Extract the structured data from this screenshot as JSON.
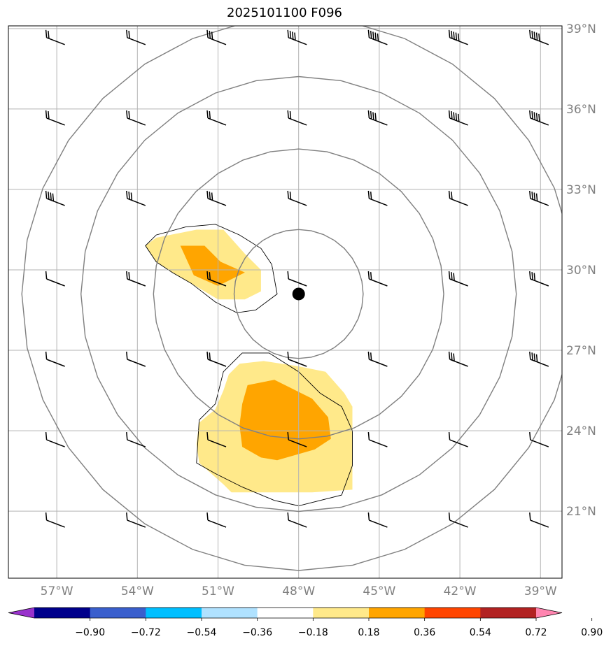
{
  "title": "2025101100 F096",
  "map": {
    "lon_range": [
      -58.8,
      -38.2
    ],
    "lat_range": [
      18.5,
      39.1
    ],
    "lon_ticks": [
      {
        "value": -57,
        "label": "57°W"
      },
      {
        "value": -54,
        "label": "54°W"
      },
      {
        "value": -51,
        "label": "51°W"
      },
      {
        "value": -48,
        "label": "48°W"
      },
      {
        "value": -45,
        "label": "45°W"
      },
      {
        "value": -42,
        "label": "42°W"
      },
      {
        "value": -39,
        "label": "39°W"
      }
    ],
    "lat_ticks": [
      {
        "value": 39,
        "label": "39°N"
      },
      {
        "value": 36,
        "label": "36°N"
      },
      {
        "value": 33,
        "label": "33°N"
      },
      {
        "value": 30,
        "label": "30°N"
      },
      {
        "value": 27,
        "label": "27°N"
      },
      {
        "value": 24,
        "label": "24°N"
      },
      {
        "value": 21,
        "label": "21°N"
      }
    ],
    "center": {
      "lon": -48.0,
      "lat": 29.1
    },
    "range_ring_radii_deg": [
      2.4,
      5.4,
      8.1,
      10.3
    ],
    "shading": {
      "levels": [
        "0.18-0.36",
        "0.36-0.54"
      ],
      "colors": [
        "#ffe98a",
        "#ffa500"
      ],
      "regions": [
        {
          "level": 0,
          "points": [
            [
              -53.7,
              30.9
            ],
            [
              -53.3,
              31.2
            ],
            [
              -51.8,
              31.5
            ],
            [
              -50.8,
              31.5
            ],
            [
              -50.0,
              30.6
            ],
            [
              -49.4,
              30.0
            ],
            [
              -49.4,
              29.2
            ],
            [
              -50.0,
              28.9
            ],
            [
              -51.0,
              28.9
            ],
            [
              -52.0,
              29.5
            ],
            [
              -52.7,
              29.9
            ],
            [
              -53.3,
              30.3
            ]
          ]
        },
        {
          "level": 0,
          "points": [
            [
              -50.2,
              26.5
            ],
            [
              -49.3,
              26.6
            ],
            [
              -48.0,
              26.4
            ],
            [
              -47.0,
              26.2
            ],
            [
              -46.3,
              25.4
            ],
            [
              -46.0,
              24.9
            ],
            [
              -46.0,
              21.8
            ],
            [
              -47.5,
              21.7
            ],
            [
              -48.0,
              21.7
            ],
            [
              -50.5,
              21.7
            ],
            [
              -50.8,
              22.0
            ],
            [
              -51.7,
              22.8
            ],
            [
              -51.8,
              23.5
            ],
            [
              -51.7,
              24.3
            ],
            [
              -51.1,
              24.8
            ],
            [
              -50.8,
              25.5
            ],
            [
              -50.6,
              26.1
            ]
          ]
        },
        {
          "level": 1,
          "points": [
            [
              -52.4,
              30.9
            ],
            [
              -51.5,
              30.9
            ],
            [
              -50.9,
              30.3
            ],
            [
              -50.0,
              29.9
            ],
            [
              -51.0,
              29.4
            ],
            [
              -51.9,
              29.8
            ]
          ]
        },
        {
          "level": 1,
          "points": [
            [
              -49.9,
              25.7
            ],
            [
              -48.9,
              25.9
            ],
            [
              -47.5,
              25.2
            ],
            [
              -46.9,
              24.5
            ],
            [
              -46.8,
              23.7
            ],
            [
              -47.4,
              23.3
            ],
            [
              -48.8,
              22.9
            ],
            [
              -49.4,
              23.0
            ],
            [
              -50.1,
              23.4
            ],
            [
              -50.2,
              24.2
            ],
            [
              -50.1,
              25.0
            ]
          ]
        }
      ],
      "outlines": [
        [
          [
            -53.7,
            30.9
          ],
          [
            -53.3,
            31.3
          ],
          [
            -52.2,
            31.6
          ],
          [
            -51.1,
            31.7
          ],
          [
            -50.2,
            31.3
          ],
          [
            -49.4,
            30.8
          ],
          [
            -49.0,
            30.2
          ],
          [
            -48.8,
            29.1
          ],
          [
            -49.6,
            28.5
          ],
          [
            -50.3,
            28.4
          ],
          [
            -51.1,
            28.8
          ],
          [
            -52.0,
            29.5
          ],
          [
            -52.7,
            29.9
          ],
          [
            -53.3,
            30.3
          ]
        ],
        [
          [
            -50.1,
            26.9
          ],
          [
            -49.1,
            26.9
          ],
          [
            -48.0,
            26.2
          ],
          [
            -47.2,
            25.4
          ],
          [
            -46.4,
            24.9
          ],
          [
            -46.0,
            24.0
          ],
          [
            -46.0,
            22.7
          ],
          [
            -46.4,
            21.6
          ],
          [
            -48.0,
            21.2
          ],
          [
            -48.9,
            21.4
          ],
          [
            -50.1,
            21.9
          ],
          [
            -51.1,
            22.4
          ],
          [
            -51.8,
            22.8
          ],
          [
            -51.7,
            24.4
          ],
          [
            -51.1,
            25.0
          ],
          [
            -50.8,
            26.2
          ]
        ]
      ]
    },
    "winds": [
      {
        "lon": -56.7,
        "lat": 38.4,
        "barbs": 2
      },
      {
        "lon": -53.7,
        "lat": 38.4,
        "barbs": 2
      },
      {
        "lon": -50.7,
        "lat": 38.4,
        "barbs": 3
      },
      {
        "lon": -47.7,
        "lat": 38.4,
        "barbs": 4
      },
      {
        "lon": -44.7,
        "lat": 38.4,
        "barbs": 5
      },
      {
        "lon": -41.7,
        "lat": 38.4,
        "barbs": 5
      },
      {
        "lon": -38.7,
        "lat": 38.4,
        "barbs": 5
      },
      {
        "lon": -56.7,
        "lat": 35.4,
        "barbs": 2
      },
      {
        "lon": -53.7,
        "lat": 35.4,
        "barbs": 2
      },
      {
        "lon": -50.7,
        "lat": 35.4,
        "barbs": 2
      },
      {
        "lon": -47.7,
        "lat": 35.4,
        "barbs": 2
      },
      {
        "lon": -44.7,
        "lat": 35.4,
        "barbs": 4
      },
      {
        "lon": -41.7,
        "lat": 35.4,
        "barbs": 5
      },
      {
        "lon": -38.7,
        "lat": 35.4,
        "barbs": 5
      },
      {
        "lon": -56.7,
        "lat": 32.4,
        "barbs": 4
      },
      {
        "lon": -53.7,
        "lat": 32.4,
        "barbs": 3
      },
      {
        "lon": -50.7,
        "lat": 32.4,
        "barbs": 3
      },
      {
        "lon": -47.7,
        "lat": 32.4,
        "barbs": 2
      },
      {
        "lon": -44.7,
        "lat": 32.4,
        "barbs": 2
      },
      {
        "lon": -41.7,
        "lat": 32.4,
        "barbs": 2
      },
      {
        "lon": -38.7,
        "lat": 32.4,
        "barbs": 4
      },
      {
        "lon": -56.7,
        "lat": 29.4,
        "barbs": 1
      },
      {
        "lon": -53.7,
        "lat": 29.4,
        "barbs": 2
      },
      {
        "lon": -50.7,
        "lat": 29.4,
        "barbs": 2
      },
      {
        "lon": -47.7,
        "lat": 29.4,
        "barbs": 1
      },
      {
        "lon": -44.7,
        "lat": 29.4,
        "barbs": 2
      },
      {
        "lon": -41.7,
        "lat": 29.4,
        "barbs": 3
      },
      {
        "lon": -38.7,
        "lat": 29.4,
        "barbs": 3
      },
      {
        "lon": -56.7,
        "lat": 26.4,
        "barbs": 1
      },
      {
        "lon": -53.7,
        "lat": 26.4,
        "barbs": 1
      },
      {
        "lon": -50.7,
        "lat": 26.4,
        "barbs": 2
      },
      {
        "lon": -47.7,
        "lat": 26.4,
        "barbs": 1
      },
      {
        "lon": -44.7,
        "lat": 26.4,
        "barbs": 2
      },
      {
        "lon": -41.7,
        "lat": 26.4,
        "barbs": 3
      },
      {
        "lon": -38.7,
        "lat": 26.4,
        "barbs": 4
      },
      {
        "lon": -56.7,
        "lat": 23.4,
        "barbs": 1
      },
      {
        "lon": -53.7,
        "lat": 23.4,
        "barbs": 1
      },
      {
        "lon": -50.7,
        "lat": 23.4,
        "barbs": 1
      },
      {
        "lon": -47.7,
        "lat": 23.4,
        "barbs": 1
      },
      {
        "lon": -44.7,
        "lat": 23.4,
        "barbs": 1
      },
      {
        "lon": -41.7,
        "lat": 23.4,
        "barbs": 1
      },
      {
        "lon": -38.7,
        "lat": 23.4,
        "barbs": 1
      },
      {
        "lon": -56.7,
        "lat": 20.4,
        "barbs": 1
      },
      {
        "lon": -53.7,
        "lat": 20.4,
        "barbs": 1
      },
      {
        "lon": -50.7,
        "lat": 20.4,
        "barbs": 1
      },
      {
        "lon": -47.7,
        "lat": 20.4,
        "barbs": 1
      },
      {
        "lon": -44.7,
        "lat": 20.4,
        "barbs": 1
      },
      {
        "lon": -41.7,
        "lat": 20.4,
        "barbs": 1
      },
      {
        "lon": -38.7,
        "lat": 20.4,
        "barbs": 1
      }
    ]
  },
  "colorbar": {
    "colors": [
      "#9932cc",
      "#00008b",
      "#3a5fcd",
      "#00bfff",
      "#b0e2ff",
      "#ffffff",
      "#ffe98a",
      "#ffa500",
      "#ff4500",
      "#b22222",
      "#ff85b0"
    ],
    "ticks": [
      "−0.90",
      "−0.72",
      "−0.54",
      "−0.36",
      "−0.18",
      "0.18",
      "0.36",
      "0.54",
      "0.72",
      "0.90"
    ]
  }
}
